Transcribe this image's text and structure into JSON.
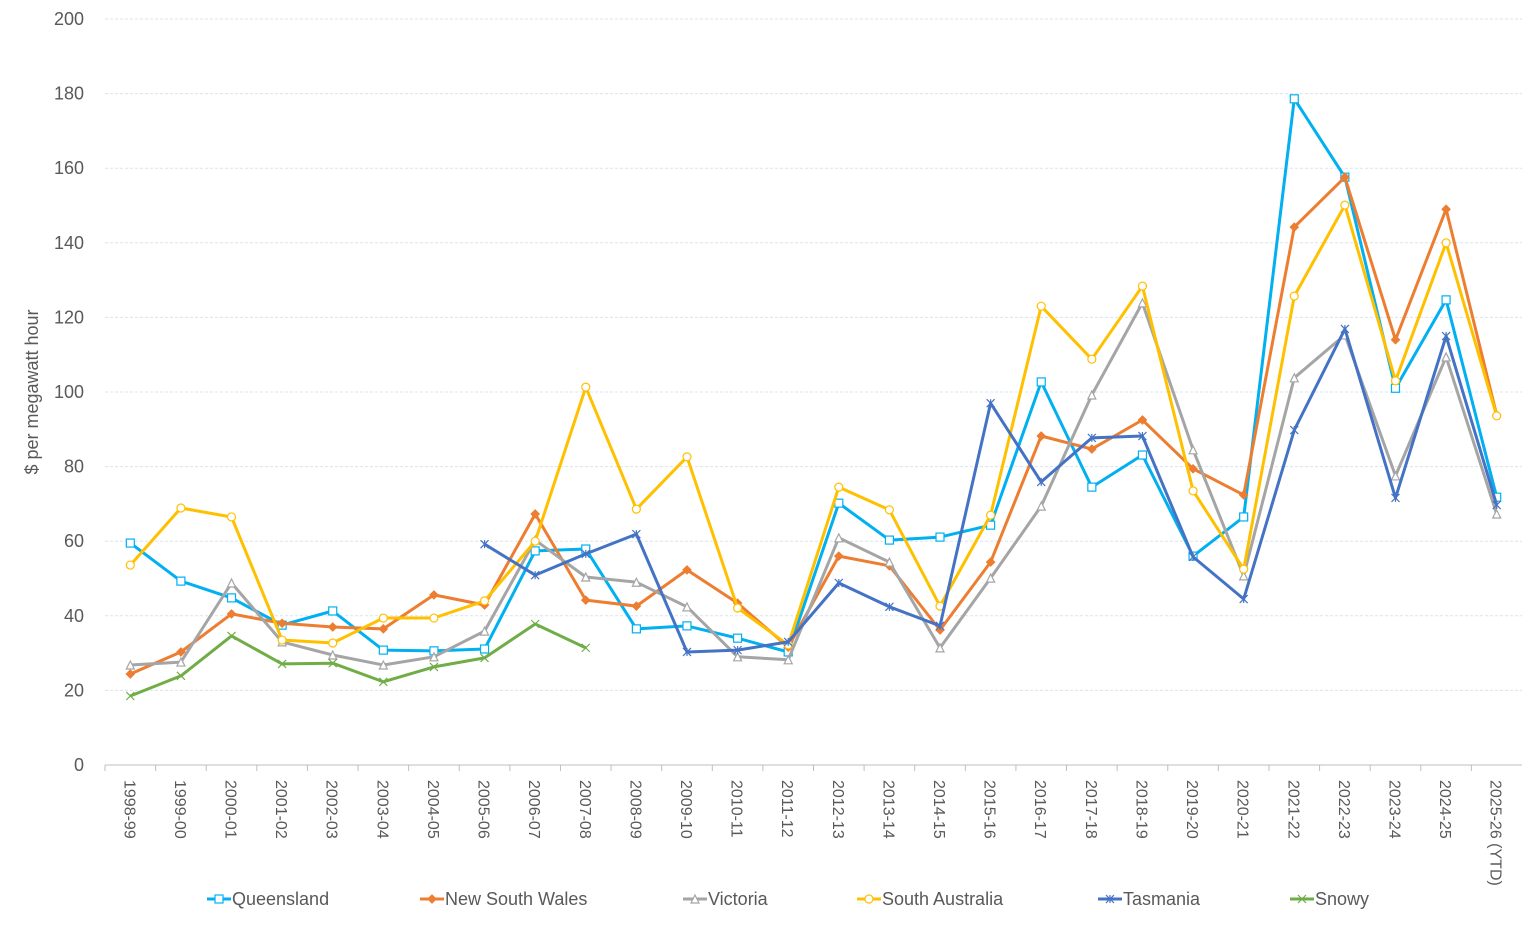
{
  "chart_data": {
    "type": "line",
    "title": "",
    "xlabel": "",
    "ylabel": "$ per megawatt hour",
    "ylim": [
      0,
      200
    ],
    "yticks": [
      0,
      20,
      40,
      60,
      80,
      100,
      120,
      140,
      160,
      180,
      200
    ],
    "grid": true,
    "legend_position": "bottom",
    "categories": [
      "1998-99",
      "1999-00",
      "2000-01",
      "2001-02",
      "2002-03",
      "2003-04",
      "2004-05",
      "2005-06",
      "2006-07",
      "2007-08",
      "2008-09",
      "2009-10",
      "2010-11",
      "2011-12",
      "2012-13",
      "2013-14",
      "2014-15",
      "2015-16",
      "2016-17",
      "2017-18",
      "2018-19",
      "2019-20",
      "2020-21",
      "2021-22",
      "2022-23",
      "2023-24",
      "2024-25",
      "2025-26 (YTD)"
    ],
    "series": [
      {
        "name": "Queensland",
        "color": "#00b0f0",
        "marker": "square",
        "values": [
          59.5,
          49.3,
          44.8,
          37.5,
          41.3,
          30.8,
          30.6,
          31.1,
          57.4,
          57.9,
          36.5,
          37.3,
          34.0,
          30.3,
          70.2,
          60.3,
          61.1,
          64.3,
          102.7,
          74.5,
          83.1,
          56.0,
          66.5,
          178.6,
          157.6,
          101.0,
          124.7,
          71.8
        ]
      },
      {
        "name": "New South Wales",
        "color": "#ed7d31",
        "marker": "diamond",
        "values": [
          24.4,
          30.3,
          40.5,
          38.0,
          37.0,
          36.5,
          45.6,
          42.9,
          67.3,
          44.2,
          42.6,
          52.3,
          43.4,
          31.6,
          56.0,
          53.4,
          36.2,
          54.4,
          88.2,
          84.7,
          92.5,
          79.4,
          72.4,
          144.2,
          157.6,
          114.0,
          149.0,
          93.8
        ]
      },
      {
        "name": "Victoria",
        "color": "#a5a5a5",
        "marker": "triangle",
        "values": [
          26.8,
          27.6,
          48.8,
          33.0,
          29.5,
          26.8,
          29.0,
          35.9,
          60.3,
          50.4,
          49.0,
          42.4,
          29.0,
          28.2,
          60.9,
          54.4,
          31.4,
          50.1,
          69.4,
          99.2,
          123.9,
          84.5,
          50.7,
          103.8,
          115.3,
          77.5,
          109.4,
          67.3
        ]
      },
      {
        "name": "South Australia",
        "color": "#ffc000",
        "marker": "circle",
        "values": [
          53.6,
          68.9,
          66.5,
          33.5,
          32.7,
          39.4,
          39.4,
          44.0,
          60.0,
          101.3,
          68.6,
          82.6,
          42.1,
          32.2,
          74.5,
          68.4,
          42.6,
          67.0,
          123.0,
          108.8,
          128.4,
          73.5,
          52.5,
          125.7,
          150.1,
          103.0,
          140.0,
          93.6
        ]
      },
      {
        "name": "Tasmania",
        "color": "#4472c4",
        "marker": "star",
        "values": [
          null,
          null,
          null,
          null,
          null,
          null,
          null,
          59.2,
          50.9,
          56.6,
          61.9,
          30.3,
          30.8,
          33.0,
          48.8,
          42.4,
          37.3,
          97.0,
          75.9,
          87.7,
          88.2,
          55.8,
          44.5,
          89.8,
          116.9,
          71.6,
          115.0,
          69.7
        ]
      },
      {
        "name": "Snowy",
        "color": "#70ad47",
        "marker": "x",
        "values": [
          18.5,
          23.9,
          34.6,
          27.1,
          27.3,
          22.3,
          26.3,
          28.7,
          37.8,
          31.4,
          null,
          null,
          null,
          null,
          null,
          null,
          null,
          null,
          null,
          null,
          null,
          null,
          null,
          null,
          null,
          null,
          null,
          null
        ]
      }
    ]
  }
}
